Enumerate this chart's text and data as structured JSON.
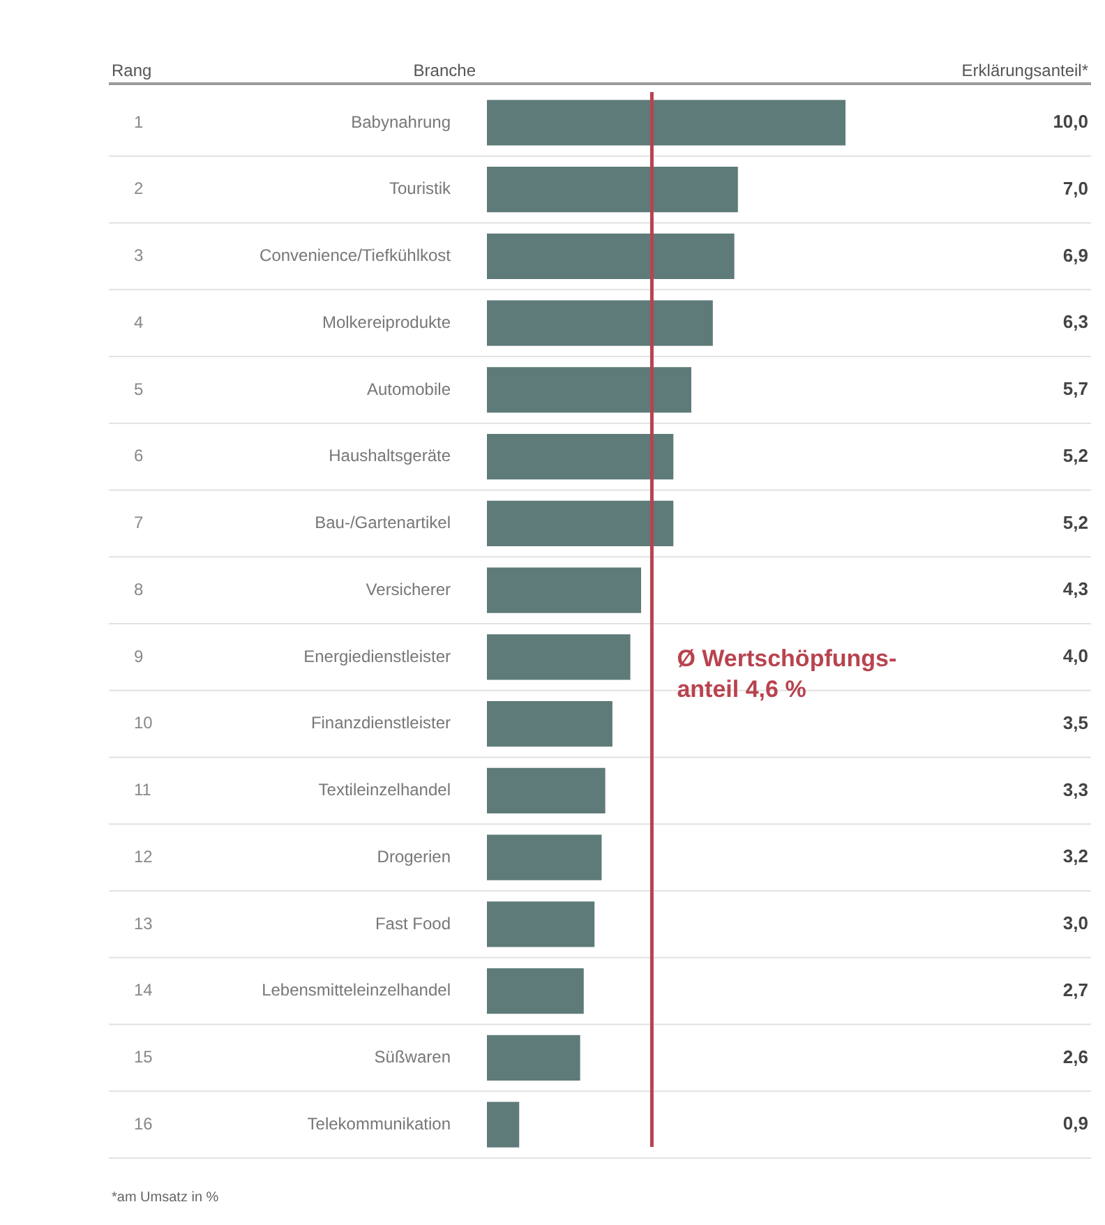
{
  "chart_data": {
    "type": "bar",
    "orientation": "horizontal",
    "ylabel": "Branche",
    "categories": [
      "Babynahrung",
      "Touristik",
      "Convenience/Tiefkühlkost",
      "Molkereiprodukte",
      "Automobile",
      "Haushaltsgeräte",
      "Bau-/Gartenartikel",
      "Versicherer",
      "Energiedienstleister",
      "Finanzdienstleister",
      "Textileinzelhandel",
      "Drogerien",
      "Fast Food",
      "Lebensmitteleinzelhandel",
      "Süßwaren",
      "Telekommunikation"
    ],
    "y2_categories": [
      "1",
      "2",
      "3",
      "4",
      "5",
      "6",
      "7",
      "8",
      "9",
      "10",
      "11",
      "12",
      "13",
      "14",
      "15",
      "16"
    ],
    "values": [
      10.0,
      7.0,
      6.9,
      6.3,
      5.7,
      5.2,
      5.2,
      4.3,
      4.0,
      3.5,
      3.3,
      3.2,
      3.0,
      2.7,
      2.6,
      0.9
    ],
    "value_labels": [
      "10,0",
      "7,0",
      "6,9",
      "6,3",
      "5,7",
      "5,2",
      "5,2",
      "4,3",
      "4,0",
      "3,5",
      "3,3",
      "3,2",
      "3,0",
      "2,7",
      "2,6",
      "0,9"
    ],
    "color": "#5e7b79",
    "ref_lines": [
      {
        "axis": "x",
        "value": 4.6,
        "label": "Ø Wertschöpfungs-\nanteil 4,6 %",
        "color": "#b8434f"
      }
    ],
    "annotations": [
      "Rang",
      "*am Umsatz in %",
      "Erklärungsanteil*"
    ],
    "grid": "y",
    "legend": false
  }
}
